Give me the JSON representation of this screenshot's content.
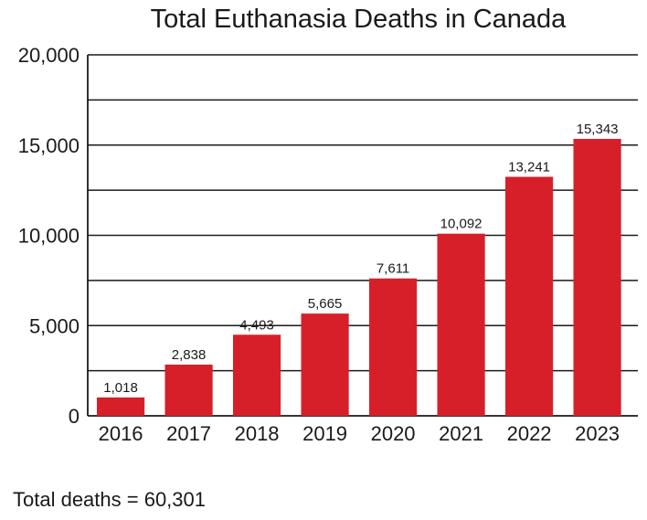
{
  "chart_data": {
    "type": "bar",
    "title": "Total Euthanasia Deaths in Canada",
    "categories": [
      "2016",
      "2017",
      "2018",
      "2019",
      "2020",
      "2021",
      "2022",
      "2023"
    ],
    "values": [
      1018,
      2838,
      4493,
      5665,
      7611,
      10092,
      13241,
      15343
    ],
    "data_labels": [
      "1,018",
      "2,838",
      "4,493",
      "5,665",
      "7,611",
      "10,092",
      "13,241",
      "15,343"
    ],
    "ylim": [
      0,
      20000
    ],
    "yticks": [
      0,
      5000,
      10000,
      15000,
      20000
    ],
    "ytick_labels": [
      "0",
      "5,000",
      "10,000",
      "15,000",
      "20,000"
    ],
    "gridlines": [
      2500,
      5000,
      7500,
      10000,
      12500,
      15000,
      17500,
      20000
    ],
    "bar_color": "#d71f2a",
    "grid": true,
    "legend": "none"
  },
  "footer": {
    "total_text": "Total deaths = 60,301"
  }
}
